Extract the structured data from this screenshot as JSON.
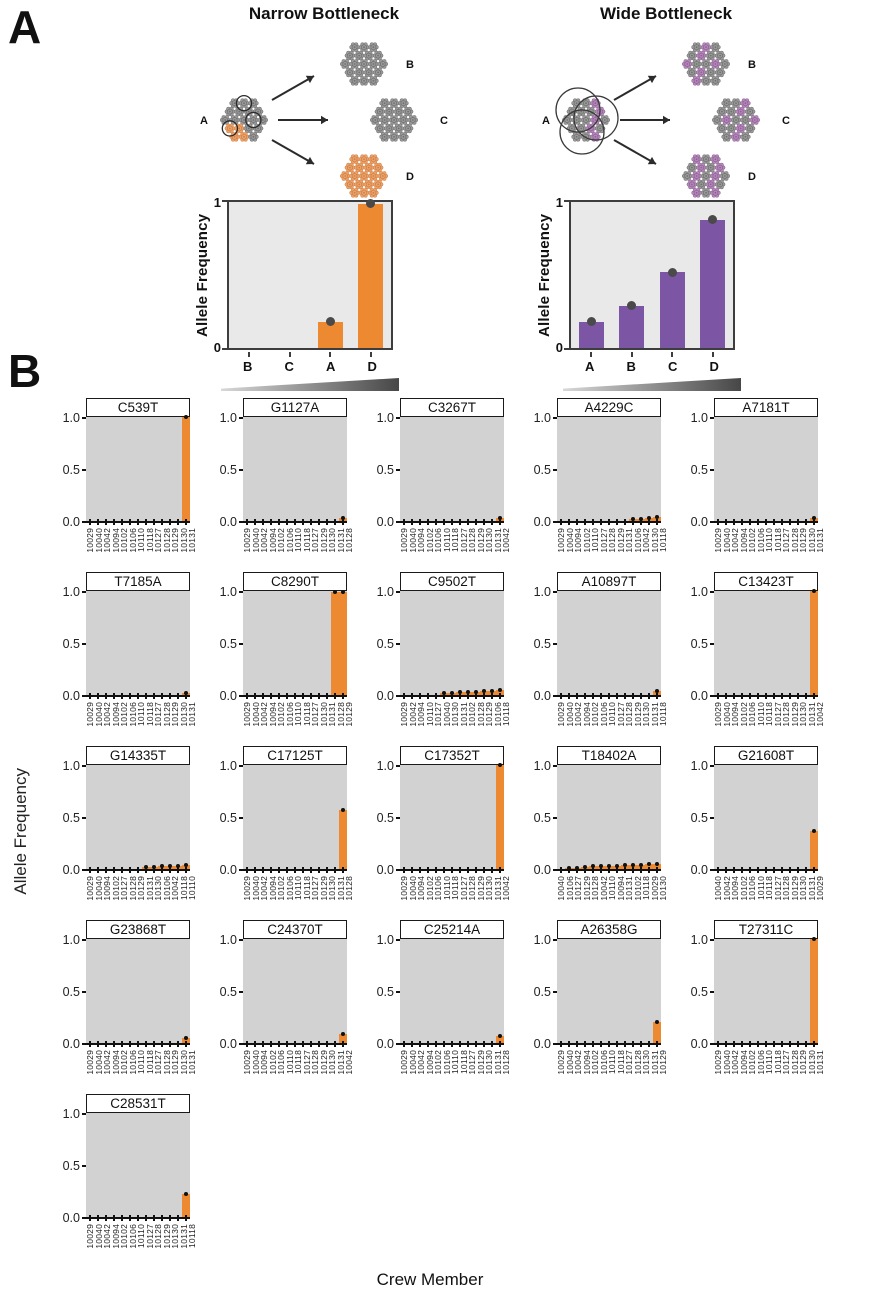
{
  "colors": {
    "orange_bar": "#ED8A31",
    "purple_bar": "#7C55A4",
    "dot_a": "#4A4A4A",
    "dot_b": "#111111",
    "plot_bg_a": "#E9E9E9",
    "plot_bg_b": "#D2D2D2",
    "particles": {
      "gray": {
        "fill": "#9A9A9A",
        "stroke": "#6F6F6F"
      },
      "orange": {
        "fill": "#EBA36E",
        "stroke": "#D07E3F"
      },
      "purple": {
        "fill": "#B489B9",
        "stroke": "#8F5F96"
      }
    }
  },
  "panel_a": {
    "label": "A",
    "narrow": {
      "title": "Narrow Bottleneck",
      "source_label": "A",
      "offspring_labels": [
        "B",
        "C",
        "D"
      ],
      "source_composition": "mostly-gray-some-orange",
      "offspring_composition": [
        "gray",
        "gray",
        "orange"
      ],
      "selection_style": "three-small-circles"
    },
    "wide": {
      "title": "Wide Bottleneck",
      "source_label": "A",
      "offspring_labels": [
        "B",
        "C",
        "D"
      ],
      "source_composition": "mixed-gray-purple",
      "offspring_composition": [
        "mixed",
        "mixed",
        "mixed"
      ],
      "selection_style": "three-large-overlapping-circles"
    }
  },
  "panel_b": {
    "label": "B",
    "ylabel": "Allele Frequency",
    "xlabel": "Crew Member",
    "yticks": [
      "1.0",
      "0.5",
      "0.0"
    ]
  },
  "chart_data": {
    "panel_a": [
      {
        "type": "bar",
        "title": "Narrow Bottleneck",
        "categories": [
          "B",
          "C",
          "A",
          "D"
        ],
        "values": [
          0,
          0,
          0.18,
          0.99
        ],
        "ylabel": "Allele Frequency",
        "yticks": [
          "1",
          "0"
        ],
        "ylim": [
          0,
          1
        ],
        "bar_color": "#ED8A31"
      },
      {
        "type": "bar",
        "title": "Wide Bottleneck",
        "categories": [
          "A",
          "B",
          "C",
          "D"
        ],
        "values": [
          0.18,
          0.29,
          0.52,
          0.88
        ],
        "ylabel": "Allele Frequency",
        "yticks": [
          "1",
          "0"
        ],
        "ylim": [
          0,
          1
        ],
        "bar_color": "#7C55A4"
      }
    ],
    "panel_b": [
      {
        "type": "bar",
        "title": "C539T",
        "categories": [
          "10029",
          "10040",
          "10042",
          "10094",
          "10102",
          "10106",
          "10110",
          "10118",
          "10127",
          "10128",
          "10129",
          "10130",
          "10131"
        ],
        "values": [
          0,
          0,
          0,
          0,
          0,
          0,
          0,
          0,
          0,
          0,
          0,
          0,
          1.0
        ]
      },
      {
        "type": "bar",
        "title": "G1127A",
        "categories": [
          "10029",
          "10040",
          "10042",
          "10094",
          "10102",
          "10106",
          "10110",
          "10118",
          "10127",
          "10129",
          "10130",
          "10131",
          "10128"
        ],
        "values": [
          0,
          0,
          0,
          0,
          0,
          0,
          0,
          0,
          0,
          0,
          0,
          0,
          0.03
        ]
      },
      {
        "type": "bar",
        "title": "C3267T",
        "categories": [
          "10029",
          "10040",
          "10094",
          "10102",
          "10106",
          "10110",
          "10118",
          "10127",
          "10128",
          "10129",
          "10130",
          "10131",
          "10042"
        ],
        "values": [
          0,
          0,
          0,
          0,
          0,
          0,
          0,
          0,
          0,
          0,
          0,
          0,
          0.03
        ]
      },
      {
        "type": "bar",
        "title": "A4229C",
        "categories": [
          "10029",
          "10040",
          "10094",
          "10102",
          "10110",
          "10127",
          "10128",
          "10129",
          "10131",
          "10106",
          "10042",
          "10130",
          "10118"
        ],
        "values": [
          0,
          0,
          0,
          0,
          0,
          0,
          0,
          0,
          0,
          0.02,
          0.02,
          0.03,
          0.04
        ]
      },
      {
        "type": "bar",
        "title": "A7181T",
        "categories": [
          "10029",
          "10040",
          "10042",
          "10094",
          "10102",
          "10106",
          "10110",
          "10118",
          "10127",
          "10128",
          "10129",
          "10130",
          "10131"
        ],
        "values": [
          0,
          0,
          0,
          0,
          0,
          0,
          0,
          0,
          0,
          0,
          0,
          0,
          0.03
        ]
      },
      {
        "type": "bar",
        "title": "T7185A",
        "categories": [
          "10029",
          "10040",
          "10042",
          "10094",
          "10102",
          "10106",
          "10110",
          "10118",
          "10127",
          "10128",
          "10129",
          "10130",
          "10131"
        ],
        "values": [
          0,
          0,
          0,
          0,
          0,
          0,
          0,
          0,
          0,
          0,
          0,
          0,
          0.02
        ]
      },
      {
        "type": "bar",
        "title": "C8290T",
        "categories": [
          "10029",
          "10040",
          "10042",
          "10094",
          "10102",
          "10106",
          "10110",
          "10118",
          "10127",
          "10130",
          "10131",
          "10128",
          "10129"
        ],
        "values": [
          0,
          0,
          0,
          0,
          0,
          0,
          0,
          0,
          0,
          0,
          0,
          0.99,
          0.99
        ]
      },
      {
        "type": "bar",
        "title": "C9502T",
        "categories": [
          "10029",
          "10042",
          "10094",
          "10110",
          "10127",
          "10040",
          "10130",
          "10131",
          "10102",
          "10128",
          "10129",
          "10106",
          "10118"
        ],
        "values": [
          0,
          0,
          0,
          0,
          0,
          0.02,
          0.02,
          0.03,
          0.03,
          0.03,
          0.04,
          0.04,
          0.05
        ]
      },
      {
        "type": "bar",
        "title": "A10897T",
        "categories": [
          "10029",
          "10040",
          "10042",
          "10094",
          "10102",
          "10106",
          "10110",
          "10127",
          "10128",
          "10129",
          "10130",
          "10131",
          "10118"
        ],
        "values": [
          0,
          0,
          0,
          0,
          0,
          0,
          0,
          0,
          0,
          0,
          0,
          0,
          0.04
        ]
      },
      {
        "type": "bar",
        "title": "C13423T",
        "categories": [
          "10029",
          "10040",
          "10094",
          "10102",
          "10106",
          "10110",
          "10118",
          "10127",
          "10128",
          "10129",
          "10130",
          "10131",
          "10042"
        ],
        "values": [
          0,
          0,
          0,
          0,
          0,
          0,
          0,
          0,
          0,
          0,
          0,
          0,
          1.0
        ]
      },
      {
        "type": "bar",
        "title": "G14335T",
        "categories": [
          "10029",
          "10040",
          "10094",
          "10102",
          "10127",
          "10128",
          "10129",
          "10131",
          "10130",
          "10106",
          "10042",
          "10118",
          "10110"
        ],
        "values": [
          0,
          0,
          0,
          0,
          0,
          0,
          0,
          0.02,
          0.02,
          0.03,
          0.03,
          0.03,
          0.04
        ]
      },
      {
        "type": "bar",
        "title": "C17125T",
        "categories": [
          "10029",
          "10040",
          "10042",
          "10094",
          "10102",
          "10106",
          "10110",
          "10118",
          "10127",
          "10129",
          "10130",
          "10131",
          "10128"
        ],
        "values": [
          0,
          0,
          0,
          0,
          0,
          0,
          0,
          0,
          0,
          0,
          0,
          0,
          0.57
        ]
      },
      {
        "type": "bar",
        "title": "C17352T",
        "categories": [
          "10029",
          "10040",
          "10094",
          "10102",
          "10106",
          "10110",
          "10118",
          "10127",
          "10128",
          "10129",
          "10130",
          "10131",
          "10042"
        ],
        "values": [
          0,
          0,
          0,
          0,
          0,
          0,
          0,
          0,
          0,
          0,
          0,
          0,
          1.0
        ]
      },
      {
        "type": "bar",
        "title": "T18402A",
        "categories": [
          "10040",
          "10106",
          "10127",
          "10129",
          "10128",
          "10042",
          "10110",
          "10094",
          "10131",
          "10102",
          "10118",
          "10029",
          "10130"
        ],
        "values": [
          0,
          0.01,
          0.01,
          0.02,
          0.03,
          0.03,
          0.03,
          0.03,
          0.04,
          0.04,
          0.04,
          0.05,
          0.05
        ]
      },
      {
        "type": "bar",
        "title": "G21608T",
        "categories": [
          "10040",
          "10042",
          "10094",
          "10102",
          "10106",
          "10110",
          "10118",
          "10127",
          "10128",
          "10129",
          "10130",
          "10131",
          "10029"
        ],
        "values": [
          0,
          0,
          0,
          0,
          0,
          0,
          0,
          0,
          0,
          0,
          0,
          0,
          0.37
        ]
      },
      {
        "type": "bar",
        "title": "G23868T",
        "categories": [
          "10029",
          "10040",
          "10042",
          "10094",
          "10102",
          "10106",
          "10110",
          "10118",
          "10127",
          "10128",
          "10129",
          "10130",
          "10131"
        ],
        "values": [
          0,
          0,
          0,
          0,
          0,
          0,
          0,
          0,
          0,
          0,
          0,
          0,
          0.05
        ]
      },
      {
        "type": "bar",
        "title": "C24370T",
        "categories": [
          "10029",
          "10040",
          "10094",
          "10102",
          "10106",
          "10110",
          "10118",
          "10127",
          "10128",
          "10129",
          "10130",
          "10131",
          "10042"
        ],
        "values": [
          0,
          0,
          0,
          0,
          0,
          0,
          0,
          0,
          0,
          0,
          0,
          0,
          0.09
        ]
      },
      {
        "type": "bar",
        "title": "C25214A",
        "categories": [
          "10029",
          "10040",
          "10042",
          "10094",
          "10102",
          "10106",
          "10110",
          "10118",
          "10127",
          "10129",
          "10130",
          "10131",
          "10128"
        ],
        "values": [
          0,
          0,
          0,
          0,
          0,
          0,
          0,
          0,
          0,
          0,
          0,
          0,
          0.07
        ]
      },
      {
        "type": "bar",
        "title": "A26358G",
        "categories": [
          "10029",
          "10040",
          "10042",
          "10094",
          "10102",
          "10106",
          "10110",
          "10118",
          "10127",
          "10128",
          "10130",
          "10131",
          "10129"
        ],
        "values": [
          0,
          0,
          0,
          0,
          0,
          0,
          0,
          0,
          0,
          0,
          0,
          0,
          0.2
        ]
      },
      {
        "type": "bar",
        "title": "T27311C",
        "categories": [
          "10029",
          "10040",
          "10042",
          "10094",
          "10102",
          "10106",
          "10110",
          "10118",
          "10127",
          "10128",
          "10129",
          "10130",
          "10131"
        ],
        "values": [
          0,
          0,
          0,
          0,
          0,
          0,
          0,
          0,
          0,
          0,
          0,
          0,
          1.0
        ]
      },
      {
        "type": "bar",
        "title": "C28531T",
        "categories": [
          "10029",
          "10040",
          "10042",
          "10094",
          "10102",
          "10106",
          "10110",
          "10127",
          "10128",
          "10129",
          "10130",
          "10131",
          "10118"
        ],
        "values": [
          0,
          0,
          0,
          0,
          0,
          0,
          0,
          0,
          0,
          0,
          0,
          0,
          0.22
        ]
      }
    ]
  }
}
